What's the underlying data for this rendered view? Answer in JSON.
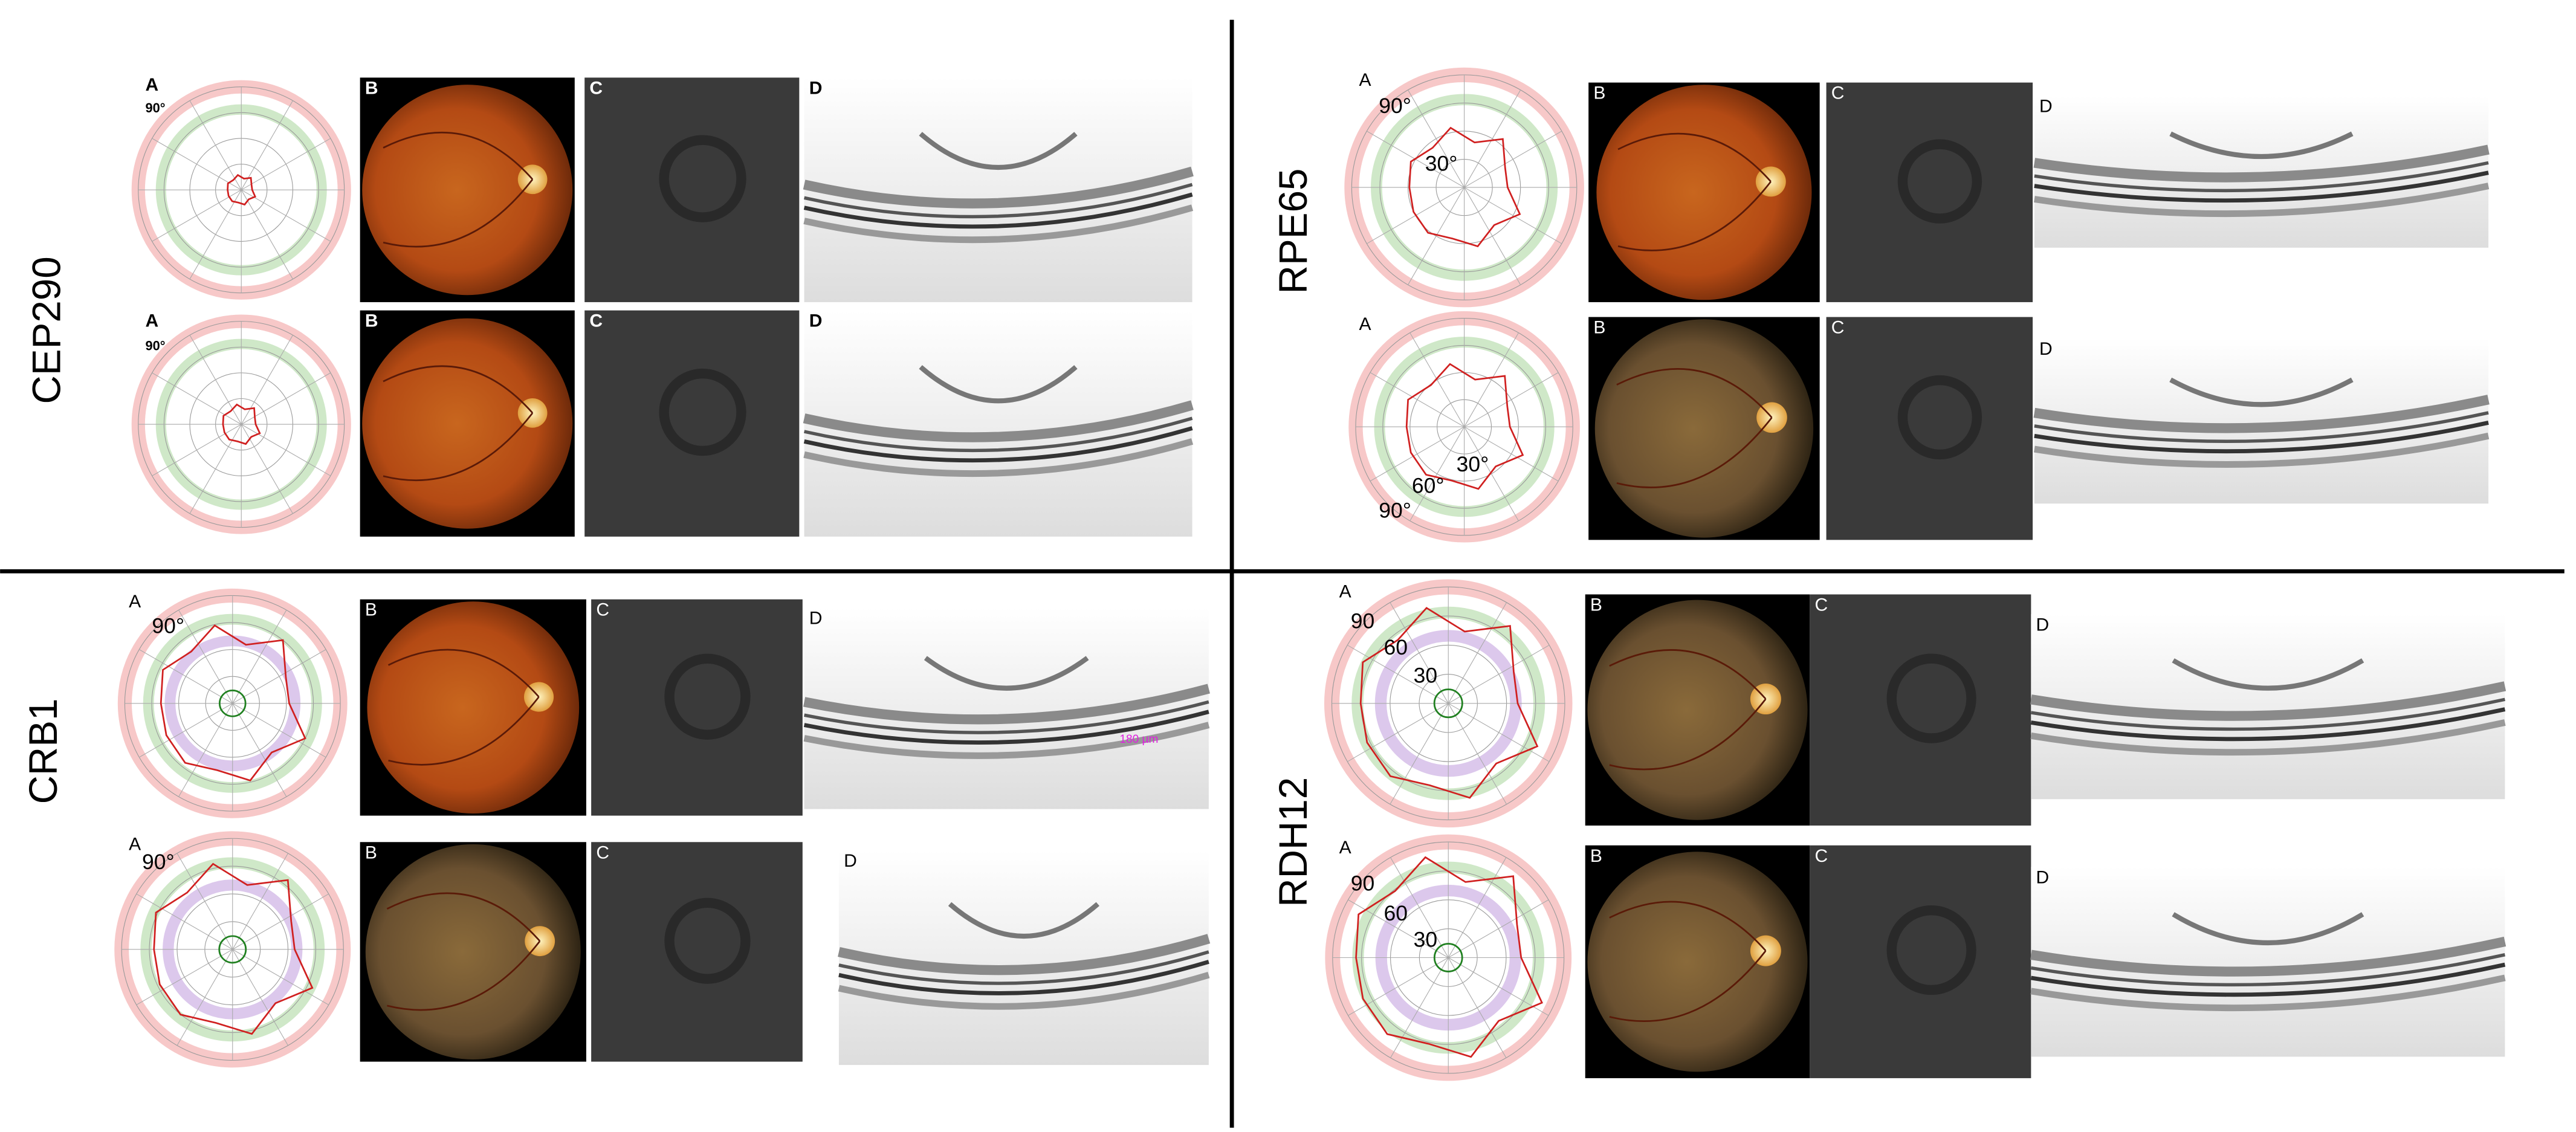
{
  "quadrants": [
    {
      "gene": "CEP290",
      "rows": [
        {
          "panels": [
            "A",
            "B",
            "C",
            "D"
          ],
          "angle_labels": [
            "90°"
          ]
        },
        {
          "panels": [
            "A",
            "B",
            "C",
            "D"
          ],
          "angle_labels": [
            "90°"
          ]
        }
      ]
    },
    {
      "gene": "RPE65",
      "rows": [
        {
          "panels": [
            "A",
            "B",
            "C",
            "D"
          ],
          "angle_labels": [
            "90°",
            "30°"
          ]
        },
        {
          "panels": [
            "A",
            "B",
            "C",
            "D"
          ],
          "angle_labels": [
            "30°",
            "60°",
            "90°"
          ]
        }
      ]
    },
    {
      "gene": "CRB1",
      "rows": [
        {
          "panels": [
            "A",
            "B",
            "C",
            "D"
          ],
          "angle_labels": [
            "90°"
          ],
          "oct_annotation": "180 µm"
        },
        {
          "panels": [
            "A",
            "B",
            "C",
            "D"
          ],
          "angle_labels": [
            "90°"
          ]
        }
      ]
    },
    {
      "gene": "RDH12",
      "rows": [
        {
          "panels": [
            "A",
            "B",
            "C",
            "D"
          ],
          "angle_labels": [
            "90",
            "60",
            "30"
          ]
        },
        {
          "panels": [
            "A",
            "B",
            "C",
            "D"
          ],
          "angle_labels": [
            "90",
            "60",
            "30"
          ]
        }
      ]
    }
  ]
}
